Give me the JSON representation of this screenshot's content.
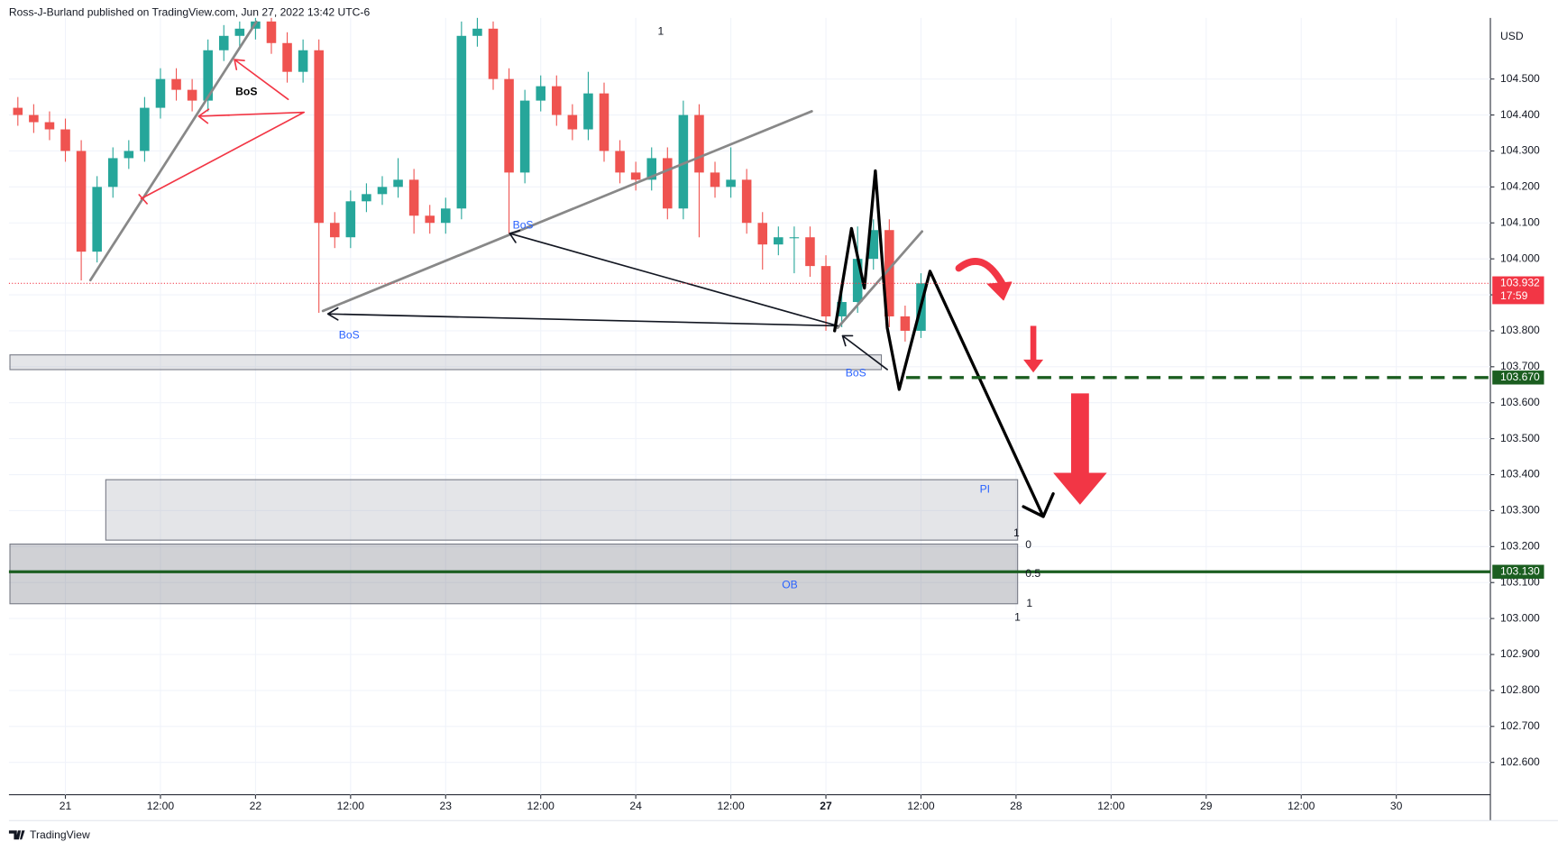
{
  "header": "Ross-J-Burland published on TradingView.com, Jun 27, 2022 13:42 UTC-6",
  "footer": "TradingView",
  "chart_data": {
    "type": "candlestick",
    "currency": "USD",
    "up_color": "#26a69a",
    "down_color": "#ef5350",
    "grid": true,
    "xlim": [
      -7,
      180
    ],
    "ylim": [
      102.51,
      104.67
    ],
    "xticks": [
      {
        "value": 0,
        "label": "21"
      },
      {
        "value": 12,
        "label": "12:00"
      },
      {
        "value": 24,
        "label": "22"
      },
      {
        "value": 36,
        "label": "12:00"
      },
      {
        "value": 48,
        "label": "23"
      },
      {
        "value": 60,
        "label": "12:00"
      },
      {
        "value": 72,
        "label": "24"
      },
      {
        "value": 84,
        "label": "12:00"
      },
      {
        "value": 96,
        "label": "27"
      },
      {
        "value": 108,
        "label": "12:00"
      },
      {
        "value": 120,
        "label": "28"
      },
      {
        "value": 132,
        "label": "12:00"
      },
      {
        "value": 144,
        "label": "29"
      },
      {
        "value": 156,
        "label": "12:00"
      },
      {
        "value": 168,
        "label": "30"
      }
    ],
    "yticks": [
      {
        "value": 102.6,
        "label": "102.600"
      },
      {
        "value": 102.7,
        "label": "102.700"
      },
      {
        "value": 102.8,
        "label": "102.800"
      },
      {
        "value": 102.9,
        "label": "102.900"
      },
      {
        "value": 103.0,
        "label": "103.000"
      },
      {
        "value": 103.1,
        "label": "103.100"
      },
      {
        "value": 103.2,
        "label": "103.200"
      },
      {
        "value": 103.3,
        "label": "103.300"
      },
      {
        "value": 103.4,
        "label": "103.400"
      },
      {
        "value": 103.5,
        "label": "103.500"
      },
      {
        "value": 103.6,
        "label": "103.600"
      },
      {
        "value": 103.7,
        "label": "103.700"
      },
      {
        "value": 103.8,
        "label": "103.800"
      },
      {
        "value": 103.9,
        "label": "103.900"
      },
      {
        "value": 104.0,
        "label": "104.000"
      },
      {
        "value": 104.1,
        "label": "104.100"
      },
      {
        "value": 104.2,
        "label": "104.200"
      },
      {
        "value": 104.3,
        "label": "104.300"
      },
      {
        "value": 104.4,
        "label": "104.400"
      },
      {
        "value": 104.5,
        "label": "104.500"
      }
    ],
    "x": [
      -6,
      -4,
      -2,
      0,
      2,
      4,
      6,
      8,
      10,
      12,
      14,
      16,
      18,
      20,
      22,
      24,
      26,
      28,
      30,
      32,
      34,
      36,
      38,
      40,
      42,
      44,
      46,
      48,
      50,
      52,
      54,
      56,
      58,
      60,
      62,
      64,
      66,
      68,
      70,
      72,
      74,
      76,
      78,
      80,
      82,
      84,
      86,
      88,
      90,
      92,
      94,
      96,
      98,
      100,
      102,
      104,
      106,
      108
    ],
    "open": [
      104.42,
      104.4,
      104.38,
      104.36,
      104.3,
      104.02,
      104.2,
      104.28,
      104.3,
      104.42,
      104.5,
      104.47,
      104.44,
      104.58,
      104.62,
      104.64,
      104.66,
      104.6,
      104.52,
      104.58,
      104.1,
      104.06,
      104.16,
      104.18,
      104.2,
      104.22,
      104.12,
      104.1,
      104.14,
      104.62,
      104.64,
      104.5,
      104.24,
      104.44,
      104.48,
      104.4,
      104.36,
      104.46,
      104.3,
      104.24,
      104.22,
      104.28,
      104.14,
      104.4,
      104.24,
      104.2,
      104.22,
      104.1,
      104.04,
      104.06,
      104.06,
      103.98,
      103.84,
      103.88,
      104.0,
      104.08,
      103.84,
      103.8
    ],
    "high": [
      104.45,
      104.43,
      104.41,
      104.39,
      104.33,
      104.23,
      104.31,
      104.33,
      104.45,
      104.53,
      104.53,
      104.5,
      104.61,
      104.65,
      104.66,
      104.67,
      104.67,
      104.63,
      104.61,
      104.61,
      104.13,
      104.19,
      104.21,
      104.23,
      104.28,
      104.25,
      104.15,
      104.17,
      104.66,
      104.67,
      104.66,
      104.53,
      104.47,
      104.51,
      104.51,
      104.43,
      104.52,
      104.49,
      104.33,
      104.27,
      104.31,
      104.31,
      104.44,
      104.43,
      104.27,
      104.31,
      104.25,
      104.13,
      104.09,
      104.09,
      104.09,
      104.01,
      103.91,
      104.09,
      104.11,
      104.11,
      103.87,
      103.96
    ],
    "low": [
      104.37,
      104.35,
      104.33,
      104.27,
      103.94,
      103.99,
      104.17,
      104.25,
      104.27,
      104.39,
      104.44,
      104.41,
      104.41,
      104.55,
      104.59,
      104.61,
      104.57,
      104.49,
      104.49,
      103.85,
      104.03,
      104.03,
      104.13,
      104.15,
      104.17,
      104.07,
      104.07,
      104.07,
      104.11,
      104.59,
      104.47,
      104.07,
      104.21,
      104.41,
      104.37,
      104.33,
      104.33,
      104.27,
      104.21,
      104.19,
      104.19,
      104.11,
      104.11,
      104.06,
      104.17,
      104.17,
      104.07,
      103.97,
      104.01,
      103.96,
      103.95,
      103.8,
      103.81,
      103.85,
      103.97,
      103.81,
      103.77,
      103.78
    ],
    "close": [
      104.4,
      104.38,
      104.36,
      104.3,
      104.02,
      104.2,
      104.28,
      104.3,
      104.42,
      104.5,
      104.47,
      104.44,
      104.58,
      104.62,
      104.64,
      104.66,
      104.6,
      104.52,
      104.58,
      104.1,
      104.06,
      104.16,
      104.18,
      104.2,
      104.22,
      104.12,
      104.1,
      104.14,
      104.62,
      104.64,
      104.5,
      104.24,
      104.44,
      104.48,
      104.4,
      104.36,
      104.46,
      104.3,
      104.24,
      104.22,
      104.28,
      104.14,
      104.4,
      104.24,
      104.2,
      104.22,
      104.1,
      104.04,
      104.06,
      104.06,
      103.98,
      103.84,
      103.88,
      104.0,
      104.08,
      103.84,
      103.8,
      103.932
    ],
    "last_price": {
      "value": 103.932,
      "label": "103.932",
      "countdown": "17:59",
      "color": "#f23645"
    },
    "horizontal_lines": [
      {
        "value": 103.67,
        "label": "103.670",
        "color": "#1b5e20",
        "style": "dashed"
      },
      {
        "value": 103.13,
        "label": "103.130",
        "color": "#1b5e20",
        "style": "solid"
      }
    ],
    "zones": [
      {
        "xrange": [
          -7,
          103
        ],
        "range": [
          103.692,
          103.733
        ],
        "color": "#b2b5be"
      },
      {
        "xrange": [
          5.1,
          120.2
        ],
        "range": [
          103.218,
          103.386
        ],
        "color": "#b2b5be"
      },
      {
        "xrange": [
          -7,
          120.2
        ],
        "range": [
          103.041,
          103.207
        ],
        "color": "#787b86"
      }
    ],
    "annotations": [
      "BoS",
      "BoS",
      "BoS",
      "BoS",
      "PI",
      "OB",
      "1",
      "1",
      "0",
      "0.5",
      "1",
      "1"
    ]
  }
}
